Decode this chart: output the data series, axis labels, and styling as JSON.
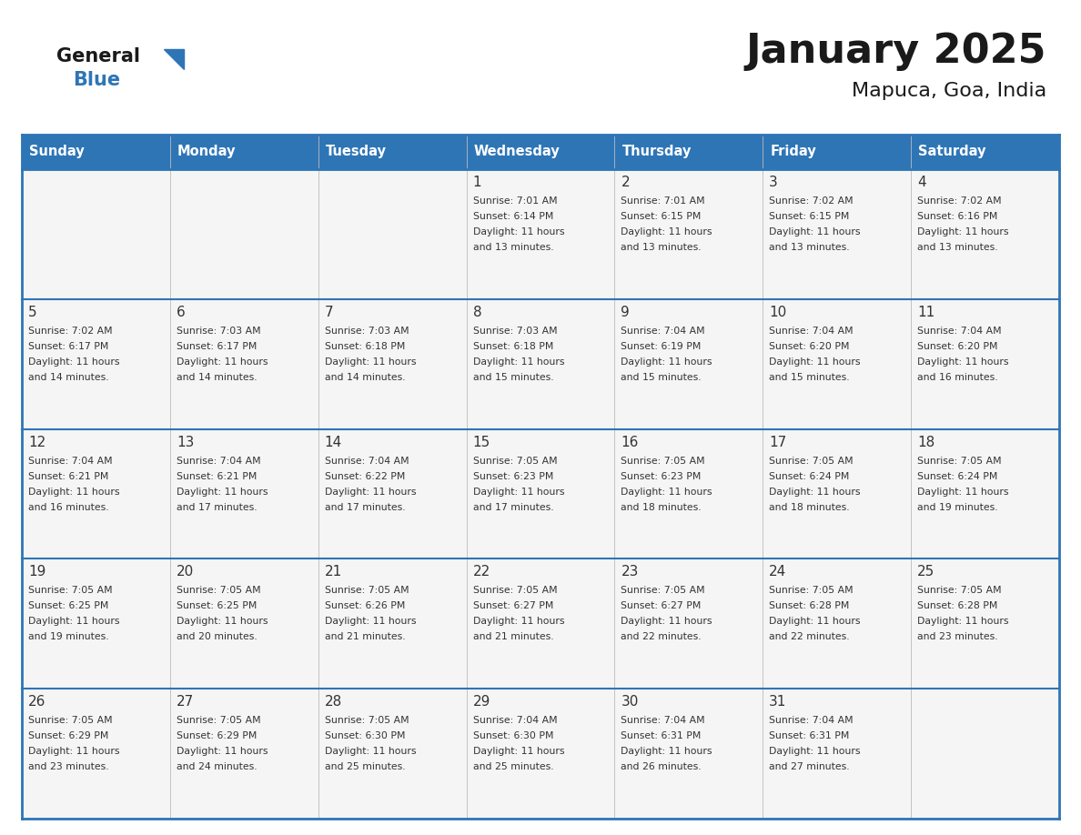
{
  "title": "January 2025",
  "subtitle": "Mapuca, Goa, India",
  "header_color": "#2E75B6",
  "header_text_color": "#FFFFFF",
  "cell_bg_color": "#F5F5F5",
  "border_color": "#2E75B6",
  "text_color": "#333333",
  "days_of_week": [
    "Sunday",
    "Monday",
    "Tuesday",
    "Wednesday",
    "Thursday",
    "Friday",
    "Saturday"
  ],
  "logo_general_color": "#1a1a1a",
  "logo_blue_color": "#2E75B6",
  "logo_triangle_color": "#2E75B6",
  "title_fontsize": 32,
  "subtitle_fontsize": 16,
  "header_fontsize": 10.5,
  "day_num_fontsize": 11,
  "cell_text_fontsize": 7.8,
  "calendar_data": [
    [
      {
        "day": "",
        "sunrise": "",
        "sunset": "",
        "daylight_h": "",
        "daylight_m": ""
      },
      {
        "day": "",
        "sunrise": "",
        "sunset": "",
        "daylight_h": "",
        "daylight_m": ""
      },
      {
        "day": "",
        "sunrise": "",
        "sunset": "",
        "daylight_h": "",
        "daylight_m": ""
      },
      {
        "day": "1",
        "sunrise": "7:01 AM",
        "sunset": "6:14 PM",
        "daylight_h": "11",
        "daylight_m": "13"
      },
      {
        "day": "2",
        "sunrise": "7:01 AM",
        "sunset": "6:15 PM",
        "daylight_h": "11",
        "daylight_m": "13"
      },
      {
        "day": "3",
        "sunrise": "7:02 AM",
        "sunset": "6:15 PM",
        "daylight_h": "11",
        "daylight_m": "13"
      },
      {
        "day": "4",
        "sunrise": "7:02 AM",
        "sunset": "6:16 PM",
        "daylight_h": "11",
        "daylight_m": "13"
      }
    ],
    [
      {
        "day": "5",
        "sunrise": "7:02 AM",
        "sunset": "6:17 PM",
        "daylight_h": "11",
        "daylight_m": "14"
      },
      {
        "day": "6",
        "sunrise": "7:03 AM",
        "sunset": "6:17 PM",
        "daylight_h": "11",
        "daylight_m": "14"
      },
      {
        "day": "7",
        "sunrise": "7:03 AM",
        "sunset": "6:18 PM",
        "daylight_h": "11",
        "daylight_m": "14"
      },
      {
        "day": "8",
        "sunrise": "7:03 AM",
        "sunset": "6:18 PM",
        "daylight_h": "11",
        "daylight_m": "15"
      },
      {
        "day": "9",
        "sunrise": "7:04 AM",
        "sunset": "6:19 PM",
        "daylight_h": "11",
        "daylight_m": "15"
      },
      {
        "day": "10",
        "sunrise": "7:04 AM",
        "sunset": "6:20 PM",
        "daylight_h": "11",
        "daylight_m": "15"
      },
      {
        "day": "11",
        "sunrise": "7:04 AM",
        "sunset": "6:20 PM",
        "daylight_h": "11",
        "daylight_m": "16"
      }
    ],
    [
      {
        "day": "12",
        "sunrise": "7:04 AM",
        "sunset": "6:21 PM",
        "daylight_h": "11",
        "daylight_m": "16"
      },
      {
        "day": "13",
        "sunrise": "7:04 AM",
        "sunset": "6:21 PM",
        "daylight_h": "11",
        "daylight_m": "17"
      },
      {
        "day": "14",
        "sunrise": "7:04 AM",
        "sunset": "6:22 PM",
        "daylight_h": "11",
        "daylight_m": "17"
      },
      {
        "day": "15",
        "sunrise": "7:05 AM",
        "sunset": "6:23 PM",
        "daylight_h": "11",
        "daylight_m": "17"
      },
      {
        "day": "16",
        "sunrise": "7:05 AM",
        "sunset": "6:23 PM",
        "daylight_h": "11",
        "daylight_m": "18"
      },
      {
        "day": "17",
        "sunrise": "7:05 AM",
        "sunset": "6:24 PM",
        "daylight_h": "11",
        "daylight_m": "18"
      },
      {
        "day": "18",
        "sunrise": "7:05 AM",
        "sunset": "6:24 PM",
        "daylight_h": "11",
        "daylight_m": "19"
      }
    ],
    [
      {
        "day": "19",
        "sunrise": "7:05 AM",
        "sunset": "6:25 PM",
        "daylight_h": "11",
        "daylight_m": "19"
      },
      {
        "day": "20",
        "sunrise": "7:05 AM",
        "sunset": "6:25 PM",
        "daylight_h": "11",
        "daylight_m": "20"
      },
      {
        "day": "21",
        "sunrise": "7:05 AM",
        "sunset": "6:26 PM",
        "daylight_h": "11",
        "daylight_m": "21"
      },
      {
        "day": "22",
        "sunrise": "7:05 AM",
        "sunset": "6:27 PM",
        "daylight_h": "11",
        "daylight_m": "21"
      },
      {
        "day": "23",
        "sunrise": "7:05 AM",
        "sunset": "6:27 PM",
        "daylight_h": "11",
        "daylight_m": "22"
      },
      {
        "day": "24",
        "sunrise": "7:05 AM",
        "sunset": "6:28 PM",
        "daylight_h": "11",
        "daylight_m": "22"
      },
      {
        "day": "25",
        "sunrise": "7:05 AM",
        "sunset": "6:28 PM",
        "daylight_h": "11",
        "daylight_m": "23"
      }
    ],
    [
      {
        "day": "26",
        "sunrise": "7:05 AM",
        "sunset": "6:29 PM",
        "daylight_h": "11",
        "daylight_m": "23"
      },
      {
        "day": "27",
        "sunrise": "7:05 AM",
        "sunset": "6:29 PM",
        "daylight_h": "11",
        "daylight_m": "24"
      },
      {
        "day": "28",
        "sunrise": "7:05 AM",
        "sunset": "6:30 PM",
        "daylight_h": "11",
        "daylight_m": "25"
      },
      {
        "day": "29",
        "sunrise": "7:04 AM",
        "sunset": "6:30 PM",
        "daylight_h": "11",
        "daylight_m": "25"
      },
      {
        "day": "30",
        "sunrise": "7:04 AM",
        "sunset": "6:31 PM",
        "daylight_h": "11",
        "daylight_m": "26"
      },
      {
        "day": "31",
        "sunrise": "7:04 AM",
        "sunset": "6:31 PM",
        "daylight_h": "11",
        "daylight_m": "27"
      },
      {
        "day": "",
        "sunrise": "",
        "sunset": "",
        "daylight_h": "",
        "daylight_m": ""
      }
    ]
  ]
}
